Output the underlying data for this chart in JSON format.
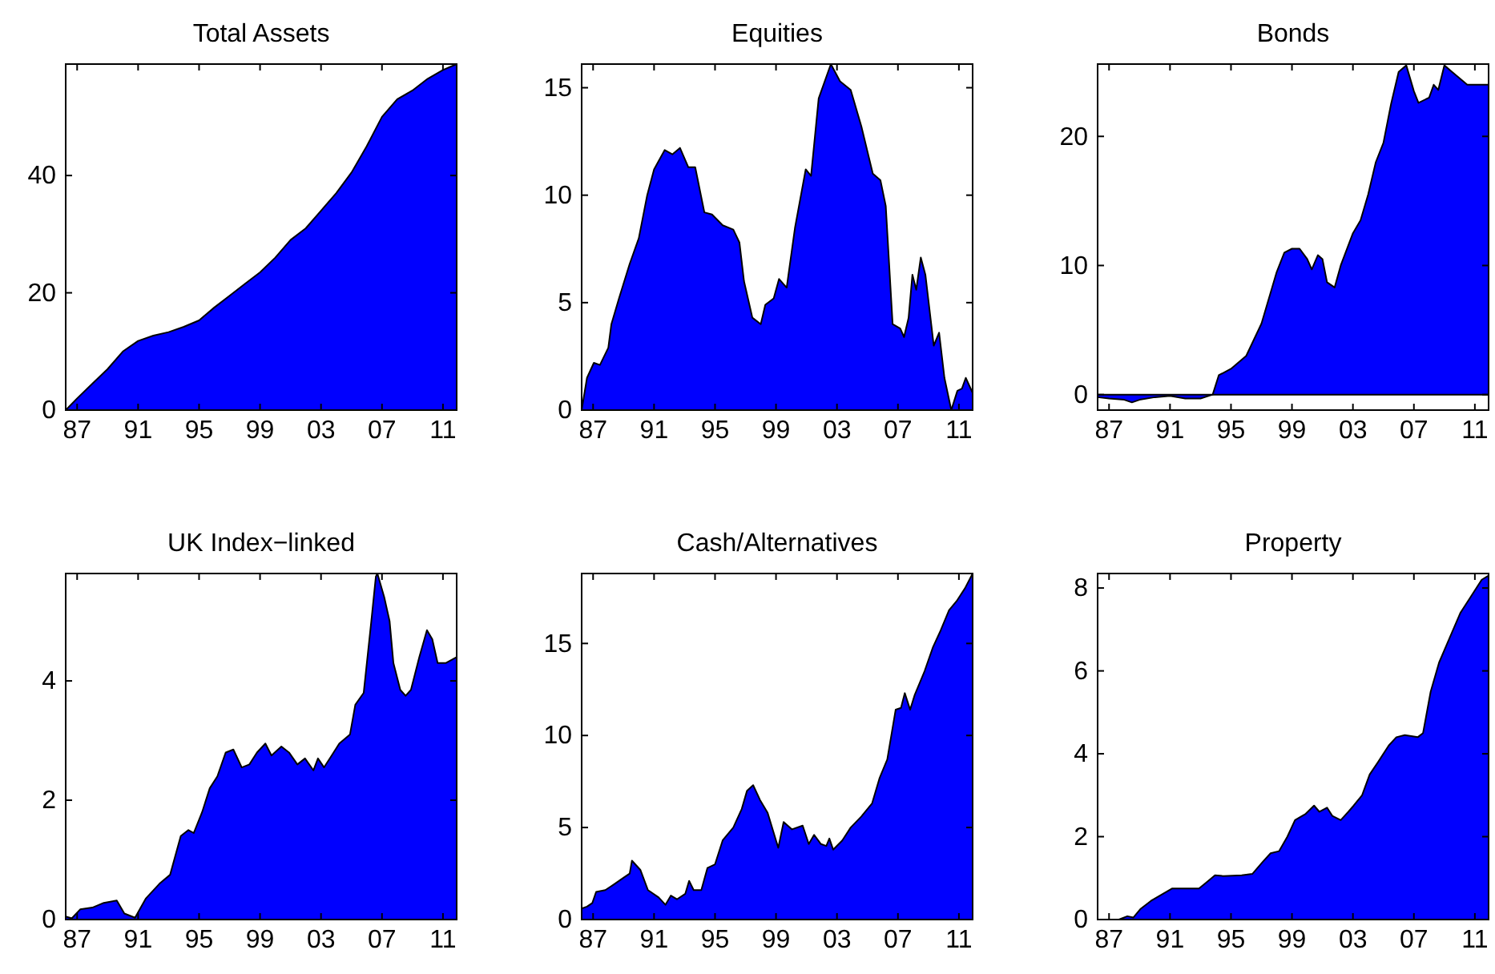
{
  "chart_data": [
    {
      "type": "area",
      "title": "Total Assets",
      "color": "#0000ff",
      "xlim": [
        1986.25,
        2011.9
      ],
      "ylim": [
        0,
        59
      ],
      "xticks": [
        {
          "value": 1987,
          "label": "87"
        },
        {
          "value": 1991,
          "label": "91"
        },
        {
          "value": 1995,
          "label": "95"
        },
        {
          "value": 1999,
          "label": "99"
        },
        {
          "value": 2003,
          "label": "03"
        },
        {
          "value": 2007,
          "label": "07"
        },
        {
          "value": 2011,
          "label": "11"
        }
      ],
      "yticks": [
        0,
        20,
        40
      ],
      "x": [
        1986.25,
        1987,
        1988,
        1989,
        1990,
        1991,
        1992,
        1993,
        1994,
        1995,
        1996,
        1997,
        1998,
        1999,
        2000,
        2001,
        2002,
        2003,
        2004,
        2005,
        2006,
        2007,
        2008,
        2009,
        2010,
        2011,
        2011.9
      ],
      "values": [
        0,
        2,
        4.5,
        7,
        10,
        11.8,
        12.7,
        13.3,
        14.2,
        15.3,
        17.5,
        19.5,
        21.5,
        23.5,
        26,
        29,
        31,
        34,
        37,
        40.5,
        45,
        50,
        53,
        54.5,
        56.5,
        58,
        59
      ]
    },
    {
      "type": "area",
      "title": "Equities",
      "color": "#0000ff",
      "xlim": [
        1986.25,
        2011.9
      ],
      "ylim": [
        0,
        16.1
      ],
      "xticks": [
        {
          "value": 1987,
          "label": "87"
        },
        {
          "value": 1991,
          "label": "91"
        },
        {
          "value": 1995,
          "label": "95"
        },
        {
          "value": 1999,
          "label": "99"
        },
        {
          "value": 2003,
          "label": "03"
        },
        {
          "value": 2007,
          "label": "07"
        },
        {
          "value": 2011,
          "label": "11"
        }
      ],
      "yticks": [
        0,
        5,
        10,
        15
      ],
      "x": [
        1986.25,
        1986.6,
        1987.05,
        1987.45,
        1988.0,
        1988.2,
        1988.7,
        1989.4,
        1990.0,
        1990.55,
        1991.0,
        1991.7,
        1992.2,
        1992.7,
        1993.25,
        1993.7,
        1994.3,
        1994.8,
        1995.5,
        1996.2,
        1996.6,
        1996.9,
        1997.45,
        1998.0,
        1998.3,
        1998.85,
        1999.2,
        1999.7,
        2000.25,
        2000.95,
        2001.3,
        2001.8,
        2002.6,
        2003.2,
        2003.9,
        2004.6,
        2005.35,
        2005.85,
        2006.2,
        2006.65,
        2007.15,
        2007.4,
        2007.7,
        2007.95,
        2008.2,
        2008.5,
        2008.8,
        2009.35,
        2009.7,
        2010.05,
        2010.5,
        2010.9,
        2011.2,
        2011.45,
        2011.9
      ],
      "values": [
        0,
        1.5,
        2.2,
        2.1,
        2.9,
        4,
        5.2,
        6.8,
        8,
        10,
        11.2,
        12.1,
        11.9,
        12.2,
        11.3,
        11.3,
        9.2,
        9.1,
        8.6,
        8.4,
        7.8,
        6,
        4.3,
        4,
        4.9,
        5.2,
        6.1,
        5.7,
        8.5,
        11.2,
        10.9,
        14.5,
        16.1,
        15.3,
        14.9,
        13.2,
        11,
        10.7,
        9.5,
        4,
        3.8,
        3.4,
        4.3,
        6.3,
        5.6,
        7.1,
        6.3,
        3,
        3.6,
        1.5,
        0,
        0.9,
        1,
        1.5,
        0.8
      ]
    },
    {
      "type": "area",
      "title": "Bonds",
      "color": "#0000ff",
      "xlim": [
        1986.25,
        2011.9
      ],
      "ylim": [
        -1.2,
        25.6
      ],
      "xticks": [
        {
          "value": 1987,
          "label": "87"
        },
        {
          "value": 1991,
          "label": "91"
        },
        {
          "value": 1995,
          "label": "95"
        },
        {
          "value": 1999,
          "label": "99"
        },
        {
          "value": 2003,
          "label": "03"
        },
        {
          "value": 2007,
          "label": "07"
        },
        {
          "value": 2011,
          "label": "11"
        }
      ],
      "yticks": [
        0,
        10,
        20
      ],
      "x": [
        1986.25,
        1987,
        1988,
        1988.5,
        1989,
        1990,
        1991,
        1992,
        1993,
        1993.8,
        1994.2,
        1995,
        1996,
        1997,
        1998,
        1998.5,
        1999,
        1999.5,
        2000,
        2000.3,
        2000.7,
        2001,
        2001.3,
        2001.8,
        2002.2,
        2003,
        2003.5,
        2004,
        2004.5,
        2005,
        2005.5,
        2006,
        2006.5,
        2007,
        2007.3,
        2008,
        2008.3,
        2008.6,
        2009,
        2009.5,
        2010,
        2010.5,
        2011.9
      ],
      "values": [
        -0.2,
        -0.3,
        -0.4,
        -0.6,
        -0.4,
        -0.2,
        -0.1,
        -0.3,
        -0.3,
        0,
        1.5,
        2,
        3,
        5.5,
        9.5,
        11,
        11.3,
        11.3,
        10.5,
        9.7,
        10.8,
        10.5,
        8.7,
        8.3,
        10,
        12.5,
        13.5,
        15.5,
        18,
        19.5,
        22.5,
        25,
        25.5,
        23.5,
        22.6,
        23,
        24,
        23.6,
        25.5,
        25,
        24.5,
        24,
        24
      ]
    },
    {
      "type": "area",
      "title": "UK Index−linked",
      "color": "#0000ff",
      "xlim": [
        1986.25,
        2011.9
      ],
      "ylim": [
        0,
        5.8
      ],
      "xticks": [
        {
          "value": 1987,
          "label": "87"
        },
        {
          "value": 1991,
          "label": "91"
        },
        {
          "value": 1995,
          "label": "95"
        },
        {
          "value": 1999,
          "label": "99"
        },
        {
          "value": 2003,
          "label": "03"
        },
        {
          "value": 2007,
          "label": "07"
        },
        {
          "value": 2011,
          "label": "11"
        }
      ],
      "yticks": [
        0,
        2,
        4
      ],
      "x": [
        1986.25,
        1986.65,
        1987.2,
        1988,
        1988.75,
        1989.6,
        1990.1,
        1990.8,
        1991.5,
        1992.4,
        1993.1,
        1993.8,
        1994.3,
        1994.65,
        1995.2,
        1995.7,
        1996.2,
        1996.75,
        1997.25,
        1997.8,
        1998.3,
        1998.8,
        1999.35,
        1999.75,
        2000.4,
        2000.9,
        2001.45,
        2001.95,
        2002.5,
        2002.8,
        2003.2,
        2003.7,
        2004.2,
        2004.9,
        2005.25,
        2005.8,
        2006.3,
        2006.6,
        2006.7,
        2007.15,
        2007.5,
        2007.75,
        2008.2,
        2008.55,
        2008.9,
        2009.45,
        2009.95,
        2010.3,
        2010.65,
        2011.2,
        2011.9
      ],
      "values": [
        0.05,
        0.02,
        0.17,
        0.2,
        0.28,
        0.32,
        0.1,
        0.03,
        0.35,
        0.6,
        0.75,
        1.4,
        1.5,
        1.45,
        1.8,
        2.2,
        2.4,
        2.8,
        2.85,
        2.55,
        2.6,
        2.8,
        2.95,
        2.75,
        2.9,
        2.8,
        2.6,
        2.7,
        2.5,
        2.7,
        2.55,
        2.75,
        2.95,
        3.1,
        3.6,
        3.8,
        5,
        5.75,
        5.8,
        5.4,
        5,
        4.3,
        3.85,
        3.75,
        3.85,
        4.4,
        4.85,
        4.7,
        4.3,
        4.3,
        4.4
      ]
    },
    {
      "type": "area",
      "title": "Cash/Alternatives",
      "color": "#0000ff",
      "xlim": [
        1986.25,
        2011.9
      ],
      "ylim": [
        0,
        18.8
      ],
      "xticks": [
        {
          "value": 1987,
          "label": "87"
        },
        {
          "value": 1991,
          "label": "91"
        },
        {
          "value": 1995,
          "label": "95"
        },
        {
          "value": 1999,
          "label": "99"
        },
        {
          "value": 2003,
          "label": "03"
        },
        {
          "value": 2007,
          "label": "07"
        },
        {
          "value": 2011,
          "label": "11"
        }
      ],
      "yticks": [
        0,
        5,
        10,
        15
      ],
      "x": [
        1986.25,
        1986.6,
        1986.95,
        1987.2,
        1987.8,
        1988.35,
        1989.05,
        1989.4,
        1989.55,
        1990.1,
        1990.6,
        1991.3,
        1991.75,
        1992.1,
        1992.5,
        1993.05,
        1993.3,
        1993.6,
        1994.1,
        1994.5,
        1995.0,
        1995.5,
        1996.2,
        1996.75,
        1997.1,
        1997.5,
        1997.95,
        1998.45,
        1999.0,
        1999.15,
        1999.5,
        2000.05,
        2000.75,
        2001.15,
        2001.5,
        2001.95,
        2002.3,
        2002.5,
        2002.75,
        2003.35,
        2003.9,
        2004.6,
        2005.3,
        2005.8,
        2006.3,
        2006.85,
        2007.2,
        2007.45,
        2007.8,
        2008.1,
        2008.75,
        2009.3,
        2009.8,
        2010.35,
        2010.85,
        2011.4,
        2011.9
      ],
      "values": [
        0.6,
        0.7,
        0.9,
        1.5,
        1.6,
        1.9,
        2.3,
        2.5,
        3.2,
        2.7,
        1.6,
        1.2,
        0.8,
        1.3,
        1.1,
        1.4,
        2.1,
        1.6,
        1.6,
        2.8,
        3,
        4.3,
        5,
        6,
        7,
        7.3,
        6.5,
        5.8,
        4.3,
        3.9,
        5.3,
        4.9,
        5.1,
        4.1,
        4.6,
        4.1,
        4,
        4.4,
        3.8,
        4.3,
        5,
        5.6,
        6.3,
        7.7,
        8.7,
        11.4,
        11.5,
        12.3,
        11.4,
        12.2,
        13.5,
        14.8,
        15.7,
        16.8,
        17.3,
        18,
        18.8
      ]
    },
    {
      "type": "area",
      "title": "Property",
      "color": "#0000ff",
      "xlim": [
        1986.25,
        2011.9
      ],
      "ylim": [
        0,
        8.35
      ],
      "xticks": [
        {
          "value": 1987,
          "label": "87"
        },
        {
          "value": 1991,
          "label": "91"
        },
        {
          "value": 1995,
          "label": "95"
        },
        {
          "value": 1999,
          "label": "99"
        },
        {
          "value": 2003,
          "label": "03"
        },
        {
          "value": 2007,
          "label": "07"
        },
        {
          "value": 2011,
          "label": "11"
        }
      ],
      "yticks": [
        0,
        2,
        4,
        6,
        8
      ],
      "x": [
        1986.25,
        1987.65,
        1988.2,
        1988.6,
        1989.05,
        1989.75,
        1990.45,
        1991.15,
        1992.0,
        1992.9,
        1993.4,
        1993.95,
        1994.5,
        1995.7,
        1996.4,
        1997.1,
        1997.6,
        1998.15,
        1998.7,
        1999.2,
        1999.9,
        2000.45,
        2000.8,
        2001.3,
        2001.65,
        2002.2,
        2002.7,
        2003.05,
        2003.6,
        2004.1,
        2004.65,
        2005.35,
        2005.85,
        2006.4,
        2007.25,
        2007.6,
        2008.1,
        2008.65,
        2009.35,
        2010.05,
        2010.75,
        2011.45,
        2011.9
      ],
      "values": [
        0,
        0,
        0.08,
        0.05,
        0.25,
        0.45,
        0.6,
        0.75,
        0.75,
        0.75,
        0.9,
        1.07,
        1.05,
        1.07,
        1.1,
        1.4,
        1.6,
        1.65,
        2,
        2.4,
        2.55,
        2.75,
        2.6,
        2.7,
        2.5,
        2.4,
        2.6,
        2.75,
        3,
        3.5,
        3.8,
        4.2,
        4.4,
        4.45,
        4.4,
        4.5,
        5.5,
        6.2,
        6.8,
        7.4,
        7.8,
        8.2,
        8.3
      ]
    }
  ]
}
